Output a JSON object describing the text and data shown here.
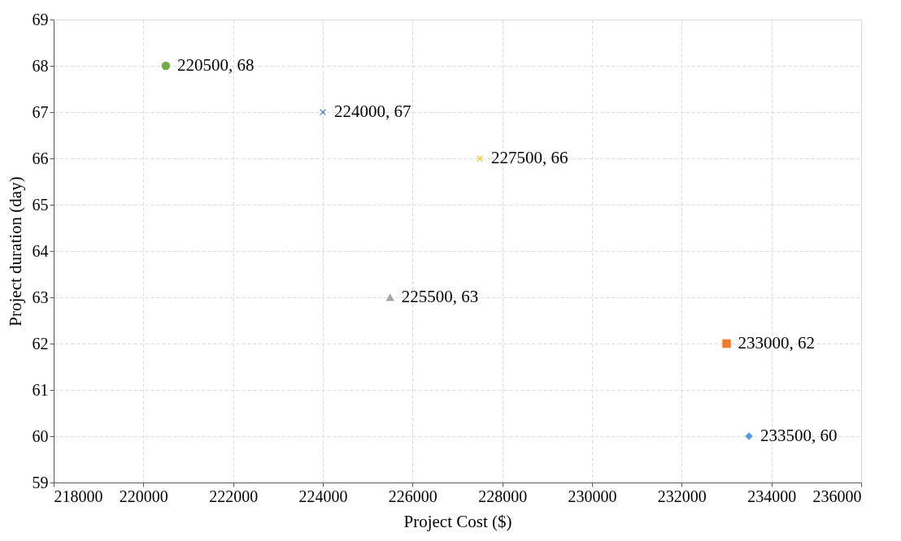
{
  "chart_data": {
    "type": "scatter",
    "xlabel": "Project Cost ($)",
    "ylabel": "Project duration (day)",
    "xlim": [
      218000,
      236000
    ],
    "xticks": [
      218000,
      220000,
      222000,
      224000,
      226000,
      228000,
      230000,
      232000,
      234000,
      236000
    ],
    "ylim": [
      59,
      69
    ],
    "yticks": [
      59,
      60,
      61,
      62,
      63,
      64,
      65,
      66,
      67,
      68,
      69
    ],
    "grid": true,
    "series": [
      {
        "x": [
          220500
        ],
        "values": [
          68
        ],
        "color": "#70ad47",
        "marker": "circle",
        "value_labels": [
          "220500, 68"
        ]
      },
      {
        "x": [
          224000
        ],
        "values": [
          67
        ],
        "color": "#4472c4",
        "marker": "cross",
        "value_labels": [
          "224000, 67"
        ]
      },
      {
        "x": [
          227500
        ],
        "values": [
          66
        ],
        "color": "#ffc000",
        "marker": "cross",
        "value_labels": [
          "227500, 66"
        ]
      },
      {
        "x": [
          225500
        ],
        "values": [
          63
        ],
        "color": "#a5a5a5",
        "marker": "triangle",
        "value_labels": [
          "225500, 63"
        ]
      },
      {
        "x": [
          233000
        ],
        "values": [
          62
        ],
        "color": "#ed7d31",
        "marker": "square",
        "value_labels": [
          "233000, 62"
        ]
      },
      {
        "x": [
          233500
        ],
        "values": [
          60
        ],
        "color": "#5b9bd5",
        "marker": "diamond",
        "value_labels": [
          "233500, 60"
        ]
      }
    ]
  }
}
